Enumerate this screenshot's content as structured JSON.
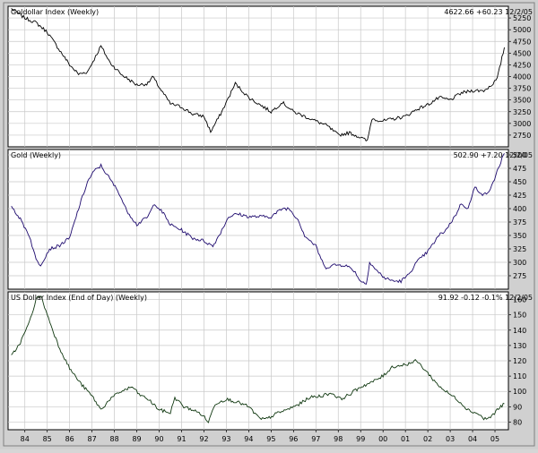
{
  "chart_data": [
    {
      "type": "line",
      "title": "Goldollar Index (Weekly)",
      "last_value": "4622.66",
      "change": "+60.23",
      "date": "12/2/05",
      "ylim": [
        2500,
        5500
      ],
      "yticks": [
        "5250",
        "5000",
        "4750",
        "4500",
        "4250",
        "4000",
        "3750",
        "3500",
        "3250",
        "3000",
        "2750"
      ],
      "grid": true,
      "line_color": "#000000",
      "series": [
        {
          "x": [
            1983.9,
            1984.5,
            1985.0,
            1985.5,
            1986.0,
            1986.5,
            1986.9,
            1987.3,
            1987.9,
            1988.3,
            1988.8,
            1989.5,
            1990.0,
            1990.2,
            1990.6,
            1991.0,
            1991.5,
            1992.0,
            1992.5,
            1992.8,
            1993.3,
            1993.6,
            1993.9,
            1994.5,
            1995.0,
            1995.5,
            1996.0,
            1996.5,
            1997.0,
            1997.5,
            1998.0,
            1998.5,
            1999.0,
            1999.5,
            1999.8,
            2000.0,
            2000.5,
            2001.0,
            2001.5,
            2002.0,
            2002.5,
            2003.0,
            2003.5,
            2004.0,
            2004.5,
            2005.0,
            2005.3,
            2005.6,
            2005.92
          ],
          "values": [
            5450,
            5250,
            5150,
            4950,
            4600,
            4250,
            4050,
            4100,
            4650,
            4300,
            4050,
            3820,
            3850,
            4000,
            3700,
            3420,
            3350,
            3200,
            3150,
            2820,
            3250,
            3550,
            3850,
            3550,
            3400,
            3250,
            3450,
            3250,
            3150,
            3050,
            2950,
            2750,
            2800,
            2700,
            2620,
            3100,
            3050,
            3100,
            3150,
            3300,
            3400,
            3550,
            3500,
            3650,
            3700,
            3700,
            3800,
            3950,
            4622.66
          ]
        }
      ]
    },
    {
      "type": "line",
      "title": "Gold (Weekly)",
      "last_value": "502.90",
      "change": "+7.20",
      "date": "12/2/05",
      "ylim": [
        250,
        510
      ],
      "yticks": [
        "500",
        "475",
        "450",
        "425",
        "400",
        "375",
        "350",
        "325",
        "300",
        "275"
      ],
      "grid": true,
      "line_color": "#1e0a6e",
      "series": [
        {
          "x": [
            1983.9,
            1984.3,
            1984.7,
            1985.0,
            1985.2,
            1985.6,
            1986.0,
            1986.5,
            1986.9,
            1987.3,
            1987.6,
            1987.9,
            1988.3,
            1988.7,
            1989.0,
            1989.5,
            1990.0,
            1990.3,
            1990.7,
            1991.0,
            1991.5,
            1992.0,
            1992.5,
            1992.9,
            1993.3,
            1993.6,
            1994.0,
            1994.5,
            1995.0,
            1995.5,
            1996.0,
            1996.3,
            1996.7,
            1997.0,
            1997.5,
            1997.9,
            1998.3,
            1998.8,
            1999.2,
            1999.5,
            1999.75,
            1999.9,
            2000.2,
            2000.6,
            2001.0,
            2001.3,
            2001.6,
            2002.0,
            2002.5,
            2003.0,
            2003.3,
            2003.7,
            2004.0,
            2004.3,
            2004.6,
            2005.0,
            2005.3,
            2005.6,
            2005.92
          ],
          "values": [
            405,
            380,
            350,
            305,
            295,
            325,
            330,
            345,
            400,
            450,
            470,
            480,
            455,
            430,
            400,
            370,
            385,
            410,
            390,
            370,
            360,
            345,
            340,
            330,
            360,
            385,
            390,
            385,
            385,
            385,
            400,
            400,
            380,
            350,
            330,
            290,
            295,
            295,
            285,
            265,
            260,
            300,
            285,
            270,
            265,
            265,
            275,
            300,
            320,
            350,
            360,
            385,
            410,
            400,
            440,
            425,
            435,
            470,
            502.9
          ]
        }
      ]
    },
    {
      "type": "line",
      "title": "US Dollar Index (End of Day) (Weekly)",
      "last_value": "91.92",
      "change": "-0.12",
      "change_pct": "-0.1%",
      "date": "12/2/05",
      "ylim": [
        75,
        165
      ],
      "yticks": [
        "160",
        "150",
        "140",
        "130",
        "120",
        "110",
        "100",
        "90",
        "80"
      ],
      "grid": true,
      "line_color": "#103810",
      "series": [
        {
          "x": [
            1983.9,
            1984.3,
            1984.7,
            1985.0,
            1985.2,
            1985.5,
            1986.0,
            1986.5,
            1987.0,
            1987.5,
            1987.9,
            1988.3,
            1988.8,
            1989.3,
            1989.6,
            1990.0,
            1990.5,
            1991.0,
            1991.2,
            1991.6,
            1992.0,
            1992.4,
            1992.7,
            1993.0,
            1993.5,
            1994.0,
            1994.5,
            1995.0,
            1995.3,
            1995.8,
            1996.2,
            1996.8,
            1997.2,
            1997.7,
            1998.2,
            1998.6,
            1999.0,
            1999.5,
            2000.0,
            2000.5,
            2000.9,
            2001.3,
            2001.6,
            2002.0,
            2002.5,
            2002.9,
            2003.3,
            2003.8,
            2004.3,
            2004.8,
            2005.0,
            2005.3,
            2005.6,
            2005.92
          ],
          "values": [
            123,
            132,
            145,
            160,
            163,
            150,
            130,
            115,
            105,
            97,
            88,
            95,
            100,
            103,
            98,
            95,
            88,
            86,
            96,
            90,
            88,
            85,
            80,
            92,
            95,
            93,
            90,
            82,
            82,
            86,
            88,
            92,
            96,
            97,
            99,
            95,
            98,
            103,
            106,
            110,
            116,
            117,
            118,
            120,
            112,
            105,
            100,
            95,
            88,
            85,
            82,
            83,
            88,
            91.92
          ]
        }
      ]
    }
  ],
  "x_axis": {
    "range": [
      1983.75,
      2006.1
    ],
    "tick_labels": [
      "84",
      "85",
      "86",
      "87",
      "88",
      "89",
      "90",
      "91",
      "92",
      "93",
      "94",
      "95",
      "96",
      "97",
      "98",
      "99",
      "00",
      "01",
      "02",
      "03",
      "04",
      "05"
    ]
  }
}
